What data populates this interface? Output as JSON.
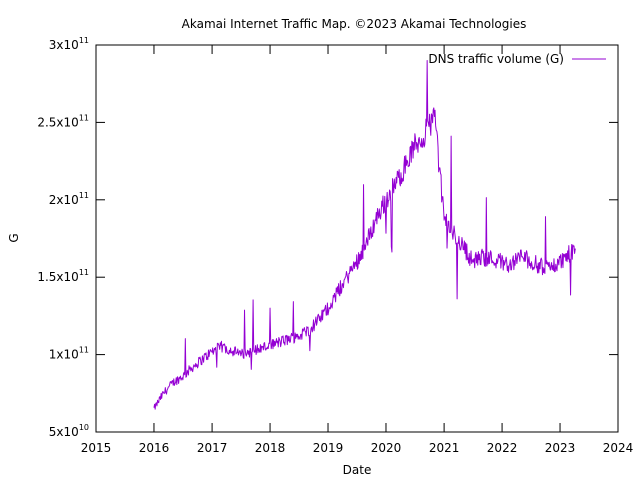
{
  "chart_data": {
    "type": "line",
    "title": "Akamai Internet Traffic Map. ©2023 Akamai Technologies",
    "xlabel": "Date",
    "ylabel": "G",
    "xlim": [
      "2015-01-01",
      "2024-01-01"
    ],
    "ylim": [
      50000000000,
      300000000000
    ],
    "grid": false,
    "legend": "top-right",
    "xticks": [
      "2015",
      "2016",
      "2017",
      "2018",
      "2019",
      "2020",
      "2021",
      "2022",
      "2023",
      "2024"
    ],
    "yticks": [
      {
        "value": 50000000000,
        "mantissa": "5",
        "exp": "10"
      },
      {
        "value": 100000000000,
        "mantissa": "1",
        "exp": "11"
      },
      {
        "value": 150000000000,
        "mantissa": "1.5",
        "exp": "11"
      },
      {
        "value": 200000000000,
        "mantissa": "2",
        "exp": "11"
      },
      {
        "value": 250000000000,
        "mantissa": "2.5",
        "exp": "11"
      },
      {
        "value": 300000000000,
        "mantissa": "3",
        "exp": "11"
      }
    ],
    "series": [
      {
        "name": "DNS traffic volume (G)",
        "color": "#9400d3",
        "x": [
          "2016-01-01",
          "2016-03-01",
          "2016-05-01",
          "2016-07-01",
          "2016-09-01",
          "2016-11-01",
          "2017-01-01",
          "2017-03-01",
          "2017-05-01",
          "2017-07-01",
          "2017-09-01",
          "2017-11-01",
          "2018-01-01",
          "2018-03-01",
          "2018-05-01",
          "2018-07-01",
          "2018-09-01",
          "2018-11-01",
          "2019-01-01",
          "2019-03-01",
          "2019-05-01",
          "2019-07-01",
          "2019-09-01",
          "2019-11-01",
          "2020-01-01",
          "2020-03-01",
          "2020-05-01",
          "2020-07-01",
          "2020-09-01",
          "2020-11-01",
          "2021-01-01",
          "2021-03-01",
          "2021-05-01",
          "2021-07-01",
          "2021-09-01",
          "2021-11-01",
          "2022-01-01",
          "2022-03-01",
          "2022-05-01",
          "2022-07-01",
          "2022-09-01",
          "2022-11-01",
          "2023-01-01",
          "2023-03-01",
          "2023-04-10"
        ],
        "values": [
          65000000000,
          75000000000,
          82000000000,
          86000000000,
          92000000000,
          97000000000,
          102000000000,
          105000000000,
          103000000000,
          100000000000,
          102000000000,
          104000000000,
          106000000000,
          108000000000,
          110000000000,
          112000000000,
          116000000000,
          122000000000,
          130000000000,
          140000000000,
          150000000000,
          160000000000,
          172000000000,
          188000000000,
          200000000000,
          210000000000,
          222000000000,
          235000000000,
          242000000000,
          255000000000,
          188000000000,
          178000000000,
          170000000000,
          160000000000,
          163000000000,
          162000000000,
          160000000000,
          158000000000,
          164000000000,
          160000000000,
          157000000000,
          156000000000,
          160000000000,
          165000000000,
          168000000000
        ]
      }
    ]
  }
}
